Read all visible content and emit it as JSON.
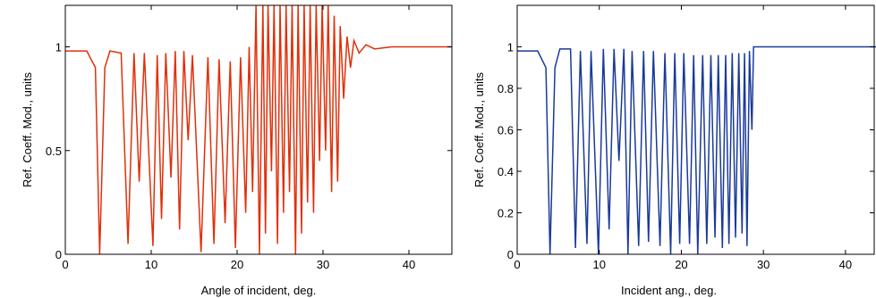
{
  "chart_data": [
    {
      "type": "line",
      "xlabel": "Angle of incident, deg.",
      "ylabel": "Ref. Coeff. Mod., units",
      "xlim": [
        0,
        45
      ],
      "ylim": [
        0,
        1.2
      ],
      "xticks": [
        0,
        10,
        20,
        30,
        40
      ],
      "yticks": [
        0,
        0.5,
        1
      ],
      "x": [
        0,
        2.5,
        3.5,
        4.0,
        4.6,
        5.2,
        6.5,
        7.3,
        8.0,
        8.6,
        9.2,
        10.2,
        10.7,
        11.2,
        11.7,
        12.3,
        12.8,
        13.3,
        13.8,
        14.3,
        14.8,
        15.8,
        16.6,
        17.3,
        17.9,
        18.6,
        19.2,
        19.8,
        20.4,
        21.0,
        21.4,
        21.8,
        22.2,
        22.6,
        23.0,
        23.3,
        23.6,
        24.0,
        24.3,
        24.7,
        25.0,
        25.4,
        25.7,
        26.1,
        26.4,
        26.8,
        27.1,
        27.5,
        27.8,
        28.2,
        28.5,
        28.9,
        29.2,
        29.6,
        29.9,
        30.3,
        30.6,
        31.0,
        31.3,
        31.7,
        32.0,
        32.4,
        32.8,
        33.2,
        33.6,
        34.2,
        35,
        36,
        38,
        45
      ],
      "series": [
        {
          "color": "#e0300a",
          "values": [
            0.98,
            0.98,
            0.9,
            0.0,
            0.9,
            0.98,
            0.97,
            0.05,
            0.97,
            0.35,
            0.97,
            0.04,
            0.96,
            0.17,
            0.97,
            0.37,
            0.98,
            0.12,
            0.98,
            0.55,
            0.96,
            0.01,
            0.95,
            0.05,
            0.94,
            0.15,
            0.93,
            0.03,
            0.95,
            0.2,
            1.0,
            0.3,
            1.2,
            0.0,
            1.2,
            0.1,
            1.2,
            0.4,
            1.2,
            0.05,
            1.2,
            0.2,
            1.2,
            0.3,
            1.2,
            0.0,
            1.2,
            0.1,
            1.2,
            0.25,
            1.2,
            0.2,
            1.2,
            0.45,
            1.2,
            0.5,
            1.2,
            0.3,
            1.15,
            0.35,
            1.1,
            0.75,
            1.05,
            0.9,
            1.03,
            0.97,
            1.01,
            0.99,
            1.0,
            1.0
          ]
        }
      ]
    },
    {
      "type": "line",
      "xlabel": "Incident ang., deg.",
      "ylabel": "Ref. Coeff. Mod., units",
      "xlim": [
        0,
        43.5
      ],
      "ylim": [
        0,
        1.2
      ],
      "xticks": [
        0,
        10,
        20,
        30,
        40
      ],
      "yticks": [
        0,
        0.2,
        0.4,
        0.6,
        0.8,
        1
      ],
      "x": [
        0,
        2.5,
        3.5,
        4,
        4.6,
        5.2,
        6.5,
        7.1,
        7.7,
        8.5,
        9.0,
        9.9,
        10.5,
        11.2,
        11.8,
        12.4,
        13.0,
        13.5,
        14.0,
        14.8,
        15.4,
        16.0,
        16.6,
        17.4,
        18.0,
        18.7,
        19.2,
        19.8,
        20.3,
        21.0,
        21.5,
        22.0,
        22.6,
        23.1,
        23.6,
        24.1,
        24.5,
        25.0,
        25.4,
        25.8,
        26.2,
        26.6,
        27.0,
        27.4,
        27.7,
        28.0,
        28.3,
        28.6,
        28.8,
        45
      ],
      "series": [
        {
          "color": "#1a3a9a",
          "values": [
            0.98,
            0.98,
            0.9,
            0.0,
            0.9,
            0.99,
            0.99,
            0.03,
            0.98,
            0.05,
            0.98,
            0.0,
            0.99,
            0.12,
            0.99,
            0.45,
            0.99,
            0.0,
            0.98,
            0.04,
            0.98,
            0.06,
            0.98,
            0.04,
            0.97,
            0.0,
            0.97,
            0.05,
            0.97,
            0.05,
            0.96,
            0.0,
            0.96,
            0.05,
            0.96,
            0.08,
            0.96,
            0.03,
            0.96,
            0.05,
            0.97,
            0.08,
            0.97,
            0.1,
            0.97,
            0.04,
            0.98,
            0.6,
            1.0,
            1.0
          ]
        }
      ]
    }
  ]
}
